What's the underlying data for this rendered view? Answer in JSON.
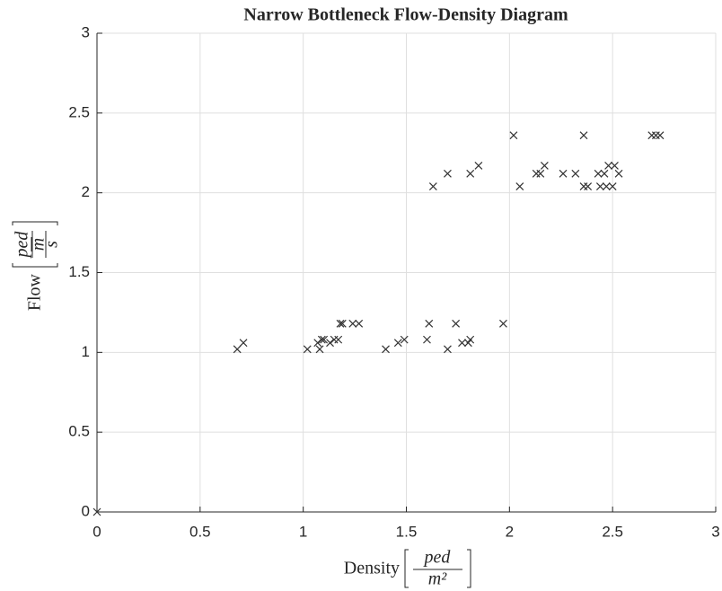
{
  "chart_data": {
    "type": "scatter",
    "title": "Narrow Bottleneck Flow-Density Diagram",
    "xlabel": "Density",
    "xunit": {
      "num": "ped",
      "den": "m²"
    },
    "ylabel": "Flow",
    "yunit": {
      "num": "ped",
      "mid": "m",
      "den": "s"
    },
    "xlim": [
      0,
      3
    ],
    "xticks": [
      0,
      0.5,
      1,
      1.5,
      2,
      2.5,
      3
    ],
    "ylim": [
      0,
      3
    ],
    "yticks": [
      0,
      0.5,
      1,
      1.5,
      2,
      2.5,
      3
    ],
    "grid": true,
    "color": "#333333",
    "marker": "x",
    "x": [
      0,
      0.68,
      0.71,
      1.02,
      1.07,
      1.08,
      1.09,
      1.1,
      1.13,
      1.15,
      1.17,
      1.18,
      1.19,
      1.24,
      1.27,
      1.4,
      1.46,
      1.49,
      1.6,
      1.61,
      1.7,
      1.74,
      1.77,
      1.8,
      1.81,
      1.97,
      1.63,
      1.7,
      1.81,
      1.85,
      2.02,
      2.05,
      2.13,
      2.15,
      2.17,
      2.26,
      2.32,
      2.36,
      2.36,
      2.38,
      2.43,
      2.44,
      2.46,
      2.47,
      2.48,
      2.5,
      2.51,
      2.53,
      2.69,
      2.71,
      2.73
    ],
    "y": [
      0,
      1.02,
      1.06,
      1.02,
      1.06,
      1.02,
      1.08,
      1.08,
      1.06,
      1.08,
      1.08,
      1.18,
      1.18,
      1.18,
      1.18,
      1.02,
      1.06,
      1.08,
      1.08,
      1.18,
      1.02,
      1.18,
      1.06,
      1.06,
      1.08,
      1.18,
      2.04,
      2.12,
      2.12,
      2.17,
      2.36,
      2.04,
      2.12,
      2.12,
      2.17,
      2.12,
      2.12,
      2.36,
      2.04,
      2.04,
      2.12,
      2.04,
      2.12,
      2.04,
      2.17,
      2.04,
      2.17,
      2.12,
      2.36,
      2.36,
      2.36
    ]
  }
}
